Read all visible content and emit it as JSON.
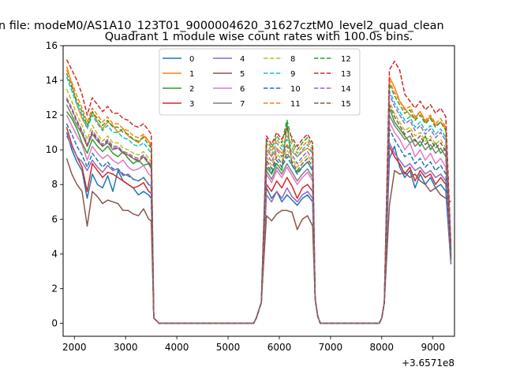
{
  "figure": {
    "suptitle": "n file: modeM0/AS1A10_123T01_9000004620_31627cztM0_level2_quad_clean",
    "title": "Quadrant 1 module wise count rates with 100.0s bins.",
    "offset_label": "+3.6571e8"
  },
  "chart_data": {
    "type": "line",
    "title": "Quadrant 1 module wise count rates with 100.0s bins.",
    "xlabel": "",
    "ylabel": "",
    "x_offset": 365710000,
    "xlim": [
      1780,
      9420
    ],
    "ylim": [
      -0.75,
      16
    ],
    "xticks": [
      2000,
      3000,
      4000,
      5000,
      6000,
      7000,
      8000,
      9000
    ],
    "yticks": [
      0,
      2,
      4,
      6,
      8,
      10,
      12,
      14,
      16
    ],
    "grid": false,
    "legend": {
      "placement": "upper-center",
      "columns": 4
    },
    "x": [
      1850,
      1950,
      2050,
      2150,
      2250,
      2350,
      2450,
      2550,
      2650,
      2750,
      2850,
      2950,
      3050,
      3150,
      3250,
      3350,
      3450,
      3500,
      3550,
      3600,
      3650,
      3700,
      4000,
      4500,
      5000,
      5500,
      5550,
      5650,
      5750,
      5850,
      5950,
      6050,
      6150,
      6250,
      6350,
      6450,
      6550,
      6650,
      6700,
      6750,
      6800,
      6850,
      7000,
      7500,
      7950,
      8000,
      8050,
      8150,
      8250,
      8350,
      8450,
      8550,
      8650,
      8750,
      8850,
      8950,
      9050,
      9150,
      9250,
      9350
    ],
    "series": [
      {
        "name": "0",
        "color": "#1f77b4",
        "dash": "solid",
        "values": [
          11.0,
          10.0,
          9.3,
          8.8,
          7.2,
          8.6,
          8.0,
          7.8,
          8.5,
          7.6,
          8.8,
          8.2,
          8.0,
          7.8,
          7.4,
          7.6,
          7.4,
          7.2,
          0.3,
          0.15,
          0.0,
          0.0,
          0.0,
          0.0,
          0.0,
          0.0,
          0.3,
          1.2,
          7.8,
          7.2,
          7.6,
          7.0,
          7.4,
          7.1,
          6.8,
          7.2,
          7.4,
          7.0,
          1.4,
          0.4,
          0.0,
          0.0,
          0.0,
          0.0,
          0.0,
          0.3,
          1.2,
          9.5,
          10.2,
          9.0,
          8.4,
          8.8,
          7.8,
          8.6,
          8.0,
          8.4,
          7.8,
          8.0,
          7.6,
          3.4
        ]
      },
      {
        "name": "1",
        "color": "#ff7f0e",
        "dash": "solid",
        "values": [
          14.8,
          13.8,
          12.6,
          11.8,
          11.3,
          12.2,
          11.6,
          11.2,
          11.6,
          11.4,
          11.0,
          11.2,
          10.8,
          10.6,
          10.4,
          10.8,
          10.5,
          10.2,
          0.3,
          0.15,
          0.0,
          0.0,
          0.0,
          0.0,
          0.0,
          0.0,
          0.3,
          1.2,
          10.0,
          9.6,
          10.1,
          9.8,
          10.3,
          9.9,
          9.6,
          9.9,
          10.1,
          9.8,
          1.4,
          0.4,
          0.0,
          0.0,
          0.0,
          0.0,
          0.0,
          0.3,
          1.2,
          14.2,
          13.6,
          12.8,
          12.4,
          12.0,
          11.8,
          12.2,
          11.6,
          11.9,
          11.4,
          11.6,
          11.2,
          4.2
        ]
      },
      {
        "name": "2",
        "color": "#2ca02c",
        "dash": "solid",
        "values": [
          12.2,
          11.8,
          11.2,
          10.4,
          9.8,
          10.6,
          10.2,
          9.9,
          10.2,
          9.8,
          9.6,
          9.9,
          9.5,
          9.2,
          9.4,
          9.1,
          9.2,
          8.9,
          0.3,
          0.15,
          0.0,
          0.0,
          0.0,
          0.0,
          0.0,
          0.0,
          0.3,
          1.2,
          9.0,
          8.6,
          9.2,
          8.8,
          11.5,
          9.1,
          8.7,
          9.0,
          9.3,
          8.8,
          1.4,
          0.4,
          0.0,
          0.0,
          0.0,
          0.0,
          0.0,
          0.3,
          1.2,
          12.4,
          11.6,
          11.2,
          10.8,
          10.4,
          10.6,
          10.2,
          10.8,
          10.0,
          10.4,
          9.8,
          10.1,
          3.8
        ]
      },
      {
        "name": "3",
        "color": "#d62728",
        "dash": "solid",
        "values": [
          11.3,
          10.3,
          9.6,
          9.0,
          7.6,
          9.2,
          8.8,
          8.4,
          8.7,
          8.6,
          8.4,
          8.2,
          8.0,
          7.8,
          7.9,
          8.1,
          7.6,
          7.5,
          0.3,
          0.15,
          0.0,
          0.0,
          0.0,
          0.0,
          0.0,
          0.0,
          0.3,
          1.2,
          8.0,
          7.6,
          8.2,
          7.8,
          8.4,
          7.9,
          7.2,
          7.8,
          8.0,
          7.6,
          1.4,
          0.4,
          0.0,
          0.0,
          0.0,
          0.0,
          0.0,
          0.3,
          1.2,
          10.2,
          9.6,
          9.2,
          8.6,
          9.0,
          8.2,
          8.8,
          8.4,
          8.6,
          8.0,
          8.4,
          8.0,
          3.6
        ]
      },
      {
        "name": "4",
        "color": "#9467bd",
        "dash": "solid",
        "values": [
          10.8,
          10.2,
          9.6,
          9.3,
          8.8,
          9.4,
          9.0,
          8.7,
          9.1,
          8.8,
          8.9,
          8.5,
          8.6,
          8.3,
          8.2,
          8.4,
          8.0,
          7.9,
          0.3,
          0.15,
          0.0,
          0.0,
          0.0,
          0.0,
          0.0,
          0.0,
          0.3,
          1.2,
          7.4,
          7.0,
          7.6,
          7.2,
          7.8,
          7.3,
          7.0,
          7.4,
          7.6,
          7.2,
          1.4,
          0.4,
          0.0,
          0.0,
          0.0,
          0.0,
          0.0,
          0.3,
          1.2,
          10.4,
          9.8,
          9.4,
          9.0,
          9.2,
          8.8,
          9.0,
          8.6,
          8.8,
          8.4,
          8.6,
          8.2,
          3.5
        ]
      },
      {
        "name": "5",
        "color": "#8c564b",
        "dash": "solid",
        "values": [
          9.5,
          8.6,
          8.0,
          7.6,
          5.6,
          7.6,
          7.3,
          6.9,
          7.1,
          7.0,
          6.9,
          6.5,
          6.5,
          6.3,
          6.2,
          6.6,
          6.0,
          5.9,
          0.3,
          0.15,
          0.0,
          0.0,
          0.0,
          0.0,
          0.0,
          0.0,
          0.3,
          1.2,
          6.2,
          5.9,
          6.3,
          6.5,
          6.5,
          6.4,
          5.4,
          6.0,
          6.2,
          5.6,
          1.4,
          0.4,
          0.0,
          0.0,
          0.0,
          0.0,
          0.0,
          0.3,
          1.2,
          6.8,
          8.8,
          8.6,
          8.7,
          8.4,
          8.6,
          8.2,
          8.0,
          7.6,
          7.8,
          7.4,
          7.2,
          7.0
        ]
      },
      {
        "name": "6",
        "color": "#e377c2",
        "dash": "solid",
        "values": [
          12.0,
          11.4,
          10.8,
          10.3,
          9.4,
          10.2,
          9.8,
          9.5,
          9.7,
          9.4,
          9.2,
          9.4,
          9.0,
          8.8,
          8.9,
          9.1,
          8.6,
          8.5,
          0.3,
          0.15,
          0.0,
          0.0,
          0.0,
          0.0,
          0.0,
          0.0,
          0.3,
          1.2,
          8.6,
          8.1,
          8.8,
          8.4,
          9.0,
          8.5,
          8.0,
          8.4,
          8.7,
          8.2,
          1.4,
          0.4,
          0.0,
          0.0,
          0.0,
          0.0,
          0.0,
          0.3,
          1.2,
          11.6,
          11.0,
          10.6,
          10.0,
          10.4,
          9.6,
          10.0,
          9.4,
          9.8,
          9.2,
          9.5,
          9.0,
          3.7
        ]
      },
      {
        "name": "7",
        "color": "#7f7f7f",
        "dash": "solid",
        "values": [
          12.6,
          12.0,
          11.4,
          10.9,
          10.2,
          10.9,
          10.5,
          10.2,
          10.4,
          10.0,
          10.1,
          9.8,
          9.7,
          9.5,
          9.3,
          9.6,
          9.2,
          9.0,
          0.3,
          0.15,
          0.0,
          0.0,
          0.0,
          0.0,
          0.0,
          0.0,
          0.3,
          1.2,
          8.8,
          8.3,
          9.0,
          8.6,
          9.2,
          8.7,
          8.2,
          8.6,
          8.9,
          8.4,
          1.4,
          0.4,
          0.0,
          0.0,
          0.0,
          0.0,
          0.0,
          0.3,
          1.2,
          12.0,
          11.4,
          11.0,
          10.6,
          10.8,
          10.2,
          10.5,
          10.0,
          10.3,
          9.8,
          10.1,
          9.6,
          3.9
        ]
      },
      {
        "name": "8",
        "color": "#bcbd22",
        "dash": "dashed",
        "values": [
          13.5,
          12.8,
          12.0,
          11.4,
          10.6,
          11.4,
          10.9,
          10.5,
          10.8,
          10.4,
          10.4,
          10.1,
          10.0,
          9.8,
          9.7,
          9.9,
          9.5,
          9.3,
          0.3,
          0.15,
          0.0,
          0.0,
          0.0,
          0.0,
          0.0,
          0.0,
          0.3,
          1.2,
          9.6,
          9.1,
          9.8,
          9.4,
          10.0,
          9.5,
          9.0,
          9.4,
          9.7,
          9.2,
          1.4,
          0.4,
          0.0,
          0.0,
          0.0,
          0.0,
          0.0,
          0.3,
          1.2,
          12.8,
          12.1,
          11.6,
          11.1,
          11.3,
          10.8,
          11.0,
          10.5,
          10.8,
          10.3,
          10.6,
          10.1,
          4.0
        ]
      },
      {
        "name": "9",
        "color": "#17becf",
        "dash": "dashed",
        "values": [
          14.2,
          13.4,
          12.6,
          12.0,
          11.2,
          12.0,
          11.5,
          11.1,
          11.4,
          11.0,
          11.0,
          10.7,
          10.6,
          10.3,
          10.2,
          10.4,
          10.0,
          9.8,
          0.3,
          0.15,
          0.0,
          0.0,
          0.0,
          0.0,
          0.0,
          0.0,
          0.3,
          1.2,
          10.2,
          9.7,
          10.4,
          10.0,
          10.6,
          10.1,
          9.6,
          10.0,
          10.3,
          9.8,
          1.4,
          0.4,
          0.0,
          0.0,
          0.0,
          0.0,
          0.0,
          0.3,
          1.2,
          13.4,
          12.7,
          12.2,
          11.7,
          11.9,
          11.3,
          11.6,
          11.1,
          11.4,
          10.9,
          11.2,
          10.7,
          4.1
        ]
      },
      {
        "name": "10",
        "color": "#1f77b4",
        "dash": "dashed",
        "values": [
          11.5,
          10.9,
          10.2,
          9.7,
          9.0,
          9.8,
          9.4,
          9.0,
          9.3,
          8.9,
          8.9,
          8.6,
          8.5,
          8.3,
          8.2,
          8.4,
          8.0,
          7.8,
          0.3,
          0.15,
          0.0,
          0.0,
          0.0,
          0.0,
          0.0,
          0.0,
          0.3,
          1.2,
          9.2,
          8.7,
          9.4,
          9.0,
          9.6,
          9.1,
          8.6,
          9.0,
          9.3,
          8.8,
          1.4,
          0.4,
          0.0,
          0.0,
          0.0,
          0.0,
          0.0,
          0.3,
          1.2,
          11.2,
          10.6,
          10.1,
          9.6,
          9.8,
          9.2,
          9.5,
          9.0,
          9.3,
          8.8,
          9.1,
          8.6,
          3.7
        ]
      },
      {
        "name": "11",
        "color": "#ff7f0e",
        "dash": "dashed",
        "values": [
          14.6,
          13.9,
          13.1,
          12.4,
          11.6,
          12.4,
          12.0,
          11.6,
          11.9,
          11.5,
          11.5,
          11.2,
          11.1,
          10.8,
          10.7,
          10.9,
          10.5,
          10.3,
          0.3,
          0.15,
          0.0,
          0.0,
          0.0,
          0.0,
          0.0,
          0.0,
          0.3,
          1.2,
          10.4,
          9.9,
          10.6,
          10.2,
          10.8,
          10.3,
          9.8,
          10.2,
          10.5,
          10.0,
          1.4,
          0.4,
          0.0,
          0.0,
          0.0,
          0.0,
          0.0,
          0.3,
          1.2,
          14.0,
          13.3,
          12.8,
          12.3,
          12.5,
          11.9,
          12.2,
          11.7,
          12.0,
          11.5,
          11.8,
          11.3,
          4.3
        ]
      },
      {
        "name": "12",
        "color": "#2ca02c",
        "dash": "dashed",
        "values": [
          14.4,
          13.6,
          12.8,
          12.2,
          11.4,
          12.2,
          11.8,
          11.4,
          11.7,
          11.3,
          11.3,
          11.0,
          10.9,
          10.6,
          10.5,
          10.7,
          10.3,
          10.1,
          0.3,
          0.15,
          0.0,
          0.0,
          0.0,
          0.0,
          0.0,
          0.0,
          0.3,
          1.2,
          10.6,
          10.1,
          10.8,
          10.4,
          11.7,
          10.5,
          10.0,
          10.4,
          10.7,
          10.2,
          1.4,
          0.4,
          0.0,
          0.0,
          0.0,
          0.0,
          0.0,
          0.3,
          1.2,
          13.8,
          13.1,
          12.6,
          12.1,
          12.3,
          11.7,
          12.0,
          11.5,
          11.8,
          11.3,
          11.6,
          11.1,
          4.2
        ]
      },
      {
        "name": "13",
        "color": "#d62728",
        "dash": "dashed",
        "values": [
          15.2,
          14.6,
          14.0,
          13.2,
          12.0,
          13.0,
          12.6,
          12.2,
          12.5,
          12.1,
          12.1,
          11.8,
          11.7,
          11.4,
          11.3,
          11.5,
          11.1,
          10.9,
          0.3,
          0.15,
          0.0,
          0.0,
          0.0,
          0.0,
          0.0,
          0.0,
          0.3,
          1.2,
          10.8,
          10.3,
          11.0,
          10.6,
          11.2,
          10.7,
          10.2,
          10.6,
          10.9,
          10.4,
          1.4,
          0.4,
          0.0,
          0.0,
          0.0,
          0.0,
          0.0,
          0.3,
          1.2,
          14.6,
          15.1,
          14.6,
          13.2,
          12.8,
          12.4,
          12.8,
          12.3,
          12.6,
          12.1,
          12.4,
          11.9,
          4.5
        ]
      },
      {
        "name": "14",
        "color": "#9467bd",
        "dash": "dashed",
        "values": [
          13.0,
          12.4,
          11.7,
          11.1,
          10.3,
          11.1,
          10.7,
          10.3,
          10.6,
          10.2,
          10.2,
          9.9,
          9.8,
          9.6,
          9.5,
          9.7,
          9.3,
          9.1,
          0.3,
          0.15,
          0.0,
          0.0,
          0.0,
          0.0,
          0.0,
          0.0,
          0.3,
          1.2,
          9.8,
          9.3,
          10.0,
          9.6,
          10.2,
          9.7,
          9.2,
          9.6,
          9.9,
          9.4,
          1.4,
          0.4,
          0.0,
          0.0,
          0.0,
          0.0,
          0.0,
          0.3,
          1.2,
          13.2,
          12.5,
          12.0,
          11.5,
          11.7,
          11.1,
          11.4,
          10.9,
          11.2,
          10.7,
          11.0,
          10.5,
          4.0
        ]
      },
      {
        "name": "15",
        "color": "#8c564b",
        "dash": "dashed",
        "values": [
          12.9,
          12.3,
          11.6,
          11.0,
          10.2,
          11.0,
          10.6,
          10.2,
          10.5,
          10.1,
          10.1,
          9.8,
          9.7,
          9.5,
          9.4,
          9.6,
          9.2,
          9.0,
          0.3,
          0.15,
          0.0,
          0.0,
          0.0,
          0.0,
          0.0,
          0.0,
          0.3,
          1.2,
          9.4,
          8.9,
          9.6,
          9.2,
          9.8,
          9.3,
          8.8,
          9.2,
          9.5,
          9.0,
          1.4,
          0.4,
          0.0,
          0.0,
          0.0,
          0.0,
          0.0,
          0.3,
          1.2,
          12.6,
          11.9,
          11.4,
          10.9,
          11.1,
          10.5,
          10.8,
          10.3,
          10.6,
          10.1,
          10.4,
          9.9,
          3.8
        ]
      }
    ]
  }
}
